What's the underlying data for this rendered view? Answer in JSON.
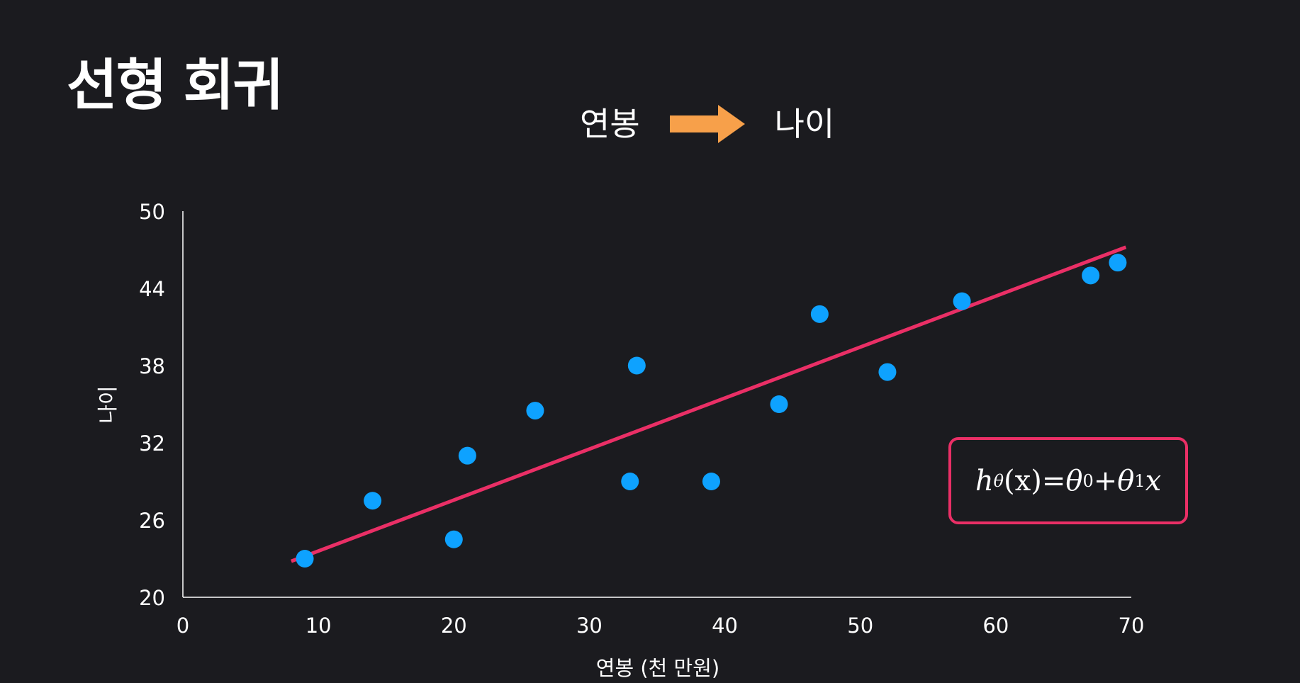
{
  "slide": {
    "title": "선형 회귀",
    "flow_from": "연봉",
    "flow_to": "나이"
  },
  "formula": {
    "h": "h",
    "h_sub": "θ",
    "lhs_arg": "(x)",
    "eq": " = ",
    "t0": "θ",
    "t0_sub": "0",
    "plus": " + ",
    "t1": "θ",
    "t1_sub": "1",
    "x": "x"
  },
  "colors": {
    "background": "#1b1b1f",
    "points": "#0ea2ff",
    "regression_line": "#ea2f66",
    "arrow": "#f7a04a",
    "axis": "#ffffff"
  },
  "chart_data": {
    "type": "scatter",
    "title": "",
    "xlabel": "연봉 (천 만원)",
    "ylabel": "나이",
    "xlim": [
      0,
      70
    ],
    "ylim": [
      20,
      50
    ],
    "xticks": [
      0,
      10,
      20,
      30,
      40,
      50,
      60,
      70
    ],
    "yticks": [
      20,
      26,
      32,
      38,
      44,
      50
    ],
    "grid": false,
    "points": [
      {
        "x": 9,
        "y": 23
      },
      {
        "x": 14,
        "y": 27.5
      },
      {
        "x": 20,
        "y": 24.5
      },
      {
        "x": 21,
        "y": 31
      },
      {
        "x": 26,
        "y": 34.5
      },
      {
        "x": 33,
        "y": 29
      },
      {
        "x": 33.5,
        "y": 38
      },
      {
        "x": 39,
        "y": 29
      },
      {
        "x": 44,
        "y": 35
      },
      {
        "x": 47,
        "y": 42
      },
      {
        "x": 52,
        "y": 37.5
      },
      {
        "x": 57.5,
        "y": 43
      },
      {
        "x": 67,
        "y": 45
      },
      {
        "x": 69,
        "y": 46
      }
    ],
    "regression_line": {
      "x": [
        8,
        69.6
      ],
      "y": [
        22.8,
        47.2
      ]
    }
  }
}
